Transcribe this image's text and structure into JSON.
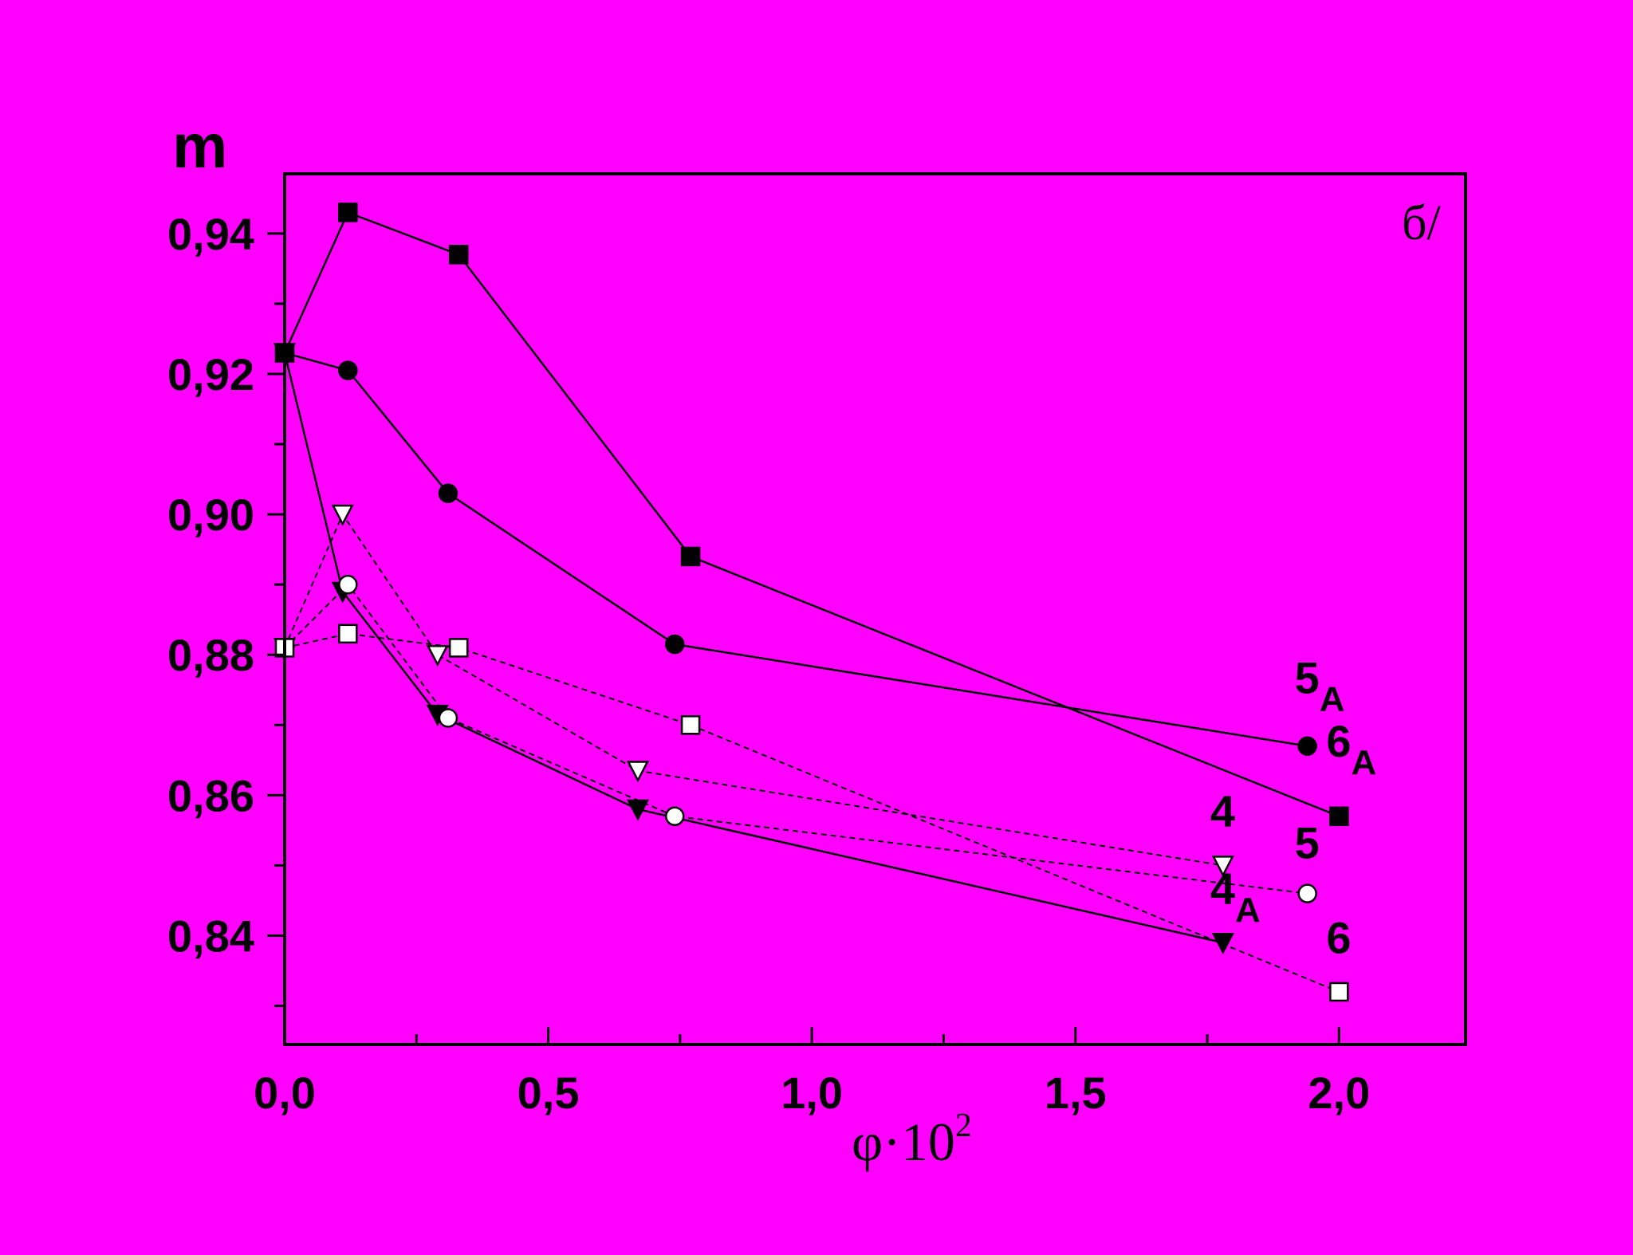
{
  "colors": {
    "background": "#FF00FF",
    "ink": "#000000",
    "open_fill": "#FFFFFF"
  },
  "chart_data": {
    "type": "line",
    "ylabel": "m",
    "xlabel": {
      "base": "φ·10",
      "sup": "2"
    },
    "panel_label": "б/",
    "xlim": [
      0,
      2.24
    ],
    "ylim": [
      0.8245,
      0.9485
    ],
    "x_ticks": [
      {
        "value": 0.0,
        "label": "0,0"
      },
      {
        "value": 0.5,
        "label": "0,5"
      },
      {
        "value": 1.0,
        "label": "1,0"
      },
      {
        "value": 1.5,
        "label": "1,5"
      },
      {
        "value": 2.0,
        "label": "2,0"
      }
    ],
    "y_ticks": [
      {
        "value": 0.84,
        "label": "0,84"
      },
      {
        "value": 0.86,
        "label": "0,86"
      },
      {
        "value": 0.88,
        "label": "0,88"
      },
      {
        "value": 0.9,
        "label": "0,90"
      },
      {
        "value": 0.92,
        "label": "0,92"
      },
      {
        "value": 0.94,
        "label": "0,94"
      }
    ],
    "grid": false,
    "series": [
      {
        "name": "6A",
        "label_main": "6",
        "label_sub": "A",
        "marker": "square",
        "filled": true,
        "dashed": false,
        "x": [
          0.0,
          0.12,
          0.33,
          0.77,
          2.0
        ],
        "y": [
          0.923,
          0.943,
          0.937,
          0.894,
          0.857
        ],
        "label_at": [
          2.0,
          0.8655
        ]
      },
      {
        "name": "5A",
        "label_main": "5",
        "label_sub": "A",
        "marker": "circle",
        "filled": true,
        "dashed": false,
        "x": [
          0.0,
          0.12,
          0.31,
          0.74,
          1.94
        ],
        "y": [
          0.923,
          0.9205,
          0.903,
          0.8815,
          0.867
        ],
        "label_at": [
          1.94,
          0.8745
        ]
      },
      {
        "name": "4A",
        "label_main": "4",
        "label_sub": "A",
        "marker": "triangle-down",
        "filled": true,
        "dashed": false,
        "x": [
          0.0,
          0.11,
          0.29,
          0.67,
          1.78
        ],
        "y": [
          0.923,
          0.889,
          0.8715,
          0.858,
          0.839
        ],
        "label_at": [
          1.78,
          0.8445
        ]
      },
      {
        "name": "4",
        "label_main": "4",
        "label_sub": "",
        "marker": "triangle-down",
        "filled": false,
        "dashed": true,
        "x": [
          0.0,
          0.11,
          0.29,
          0.67,
          1.78
        ],
        "y": [
          0.881,
          0.9,
          0.88,
          0.8635,
          0.85
        ],
        "label_at": [
          1.78,
          0.8555
        ]
      },
      {
        "name": "5",
        "label_main": "5",
        "label_sub": "",
        "marker": "circle",
        "filled": false,
        "dashed": true,
        "x": [
          0.0,
          0.12,
          0.31,
          0.74,
          1.94
        ],
        "y": [
          0.881,
          0.89,
          0.871,
          0.857,
          0.846
        ],
        "label_at": [
          1.94,
          0.851
        ]
      },
      {
        "name": "6",
        "label_main": "6",
        "label_sub": "",
        "marker": "square",
        "filled": false,
        "dashed": true,
        "x": [
          0.0,
          0.12,
          0.33,
          0.77,
          2.0
        ],
        "y": [
          0.881,
          0.883,
          0.881,
          0.87,
          0.832
        ],
        "label_at": [
          2.0,
          0.8375
        ]
      }
    ]
  }
}
